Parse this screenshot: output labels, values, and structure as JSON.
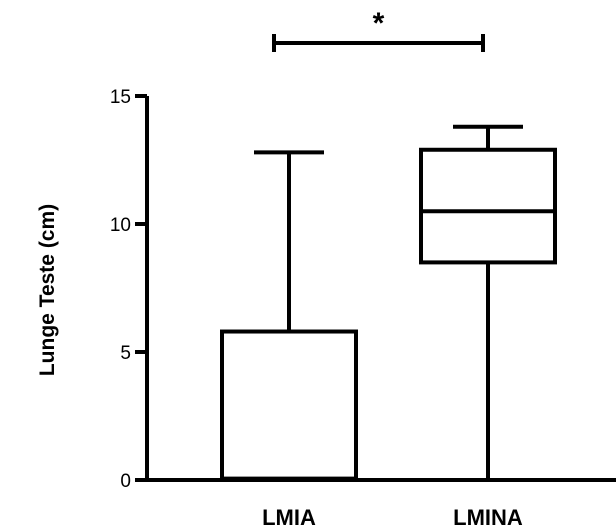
{
  "chart_data": {
    "type": "box",
    "ylabel": "Lunge Teste (cm)",
    "xlabel": "",
    "ylim": [
      0,
      15
    ],
    "yticks": [
      0,
      5,
      10,
      15
    ],
    "categories": [
      "LMIA",
      "LMINA"
    ],
    "boxes": [
      {
        "label": "LMIA",
        "min": 0,
        "q1": 0.05,
        "median": 0.05,
        "q3": 5.8,
        "max": 12.8
      },
      {
        "label": "LMINA",
        "min": 0,
        "q1": 8.5,
        "median": 10.5,
        "q3": 12.9,
        "max": 13.8
      }
    ],
    "significance": {
      "label": "*",
      "from": "LMIA",
      "to": "LMINA"
    },
    "colors": {
      "stroke": "#000000",
      "box_fill": "#ffffff"
    }
  }
}
